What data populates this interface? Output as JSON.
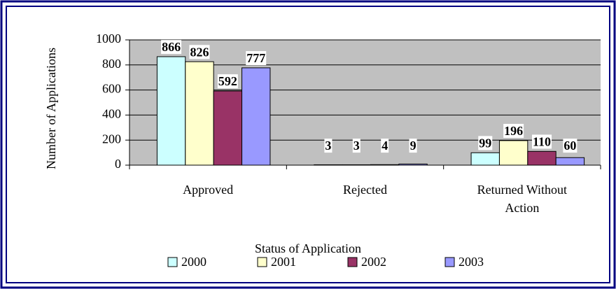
{
  "chart_data": {
    "type": "bar",
    "x_label": "Status of Application",
    "y_label": "Number of Applications",
    "categories": [
      "Approved",
      "Rejected",
      "Returned Without Action"
    ],
    "series": [
      {
        "name": "2000",
        "color": "#ccffff",
        "values": [
          866,
          3,
          99
        ]
      },
      {
        "name": "2001",
        "color": "#ffffcc",
        "values": [
          826,
          3,
          196
        ]
      },
      {
        "name": "2002",
        "color": "#993366",
        "values": [
          592,
          4,
          110
        ]
      },
      {
        "name": "2003",
        "color": "#9999ff",
        "values": [
          777,
          9,
          60
        ]
      }
    ],
    "ylim": [
      0,
      1000
    ],
    "yticks": [
      0,
      200,
      400,
      600,
      800,
      1000
    ],
    "grid": true,
    "legend": "bottom"
  }
}
